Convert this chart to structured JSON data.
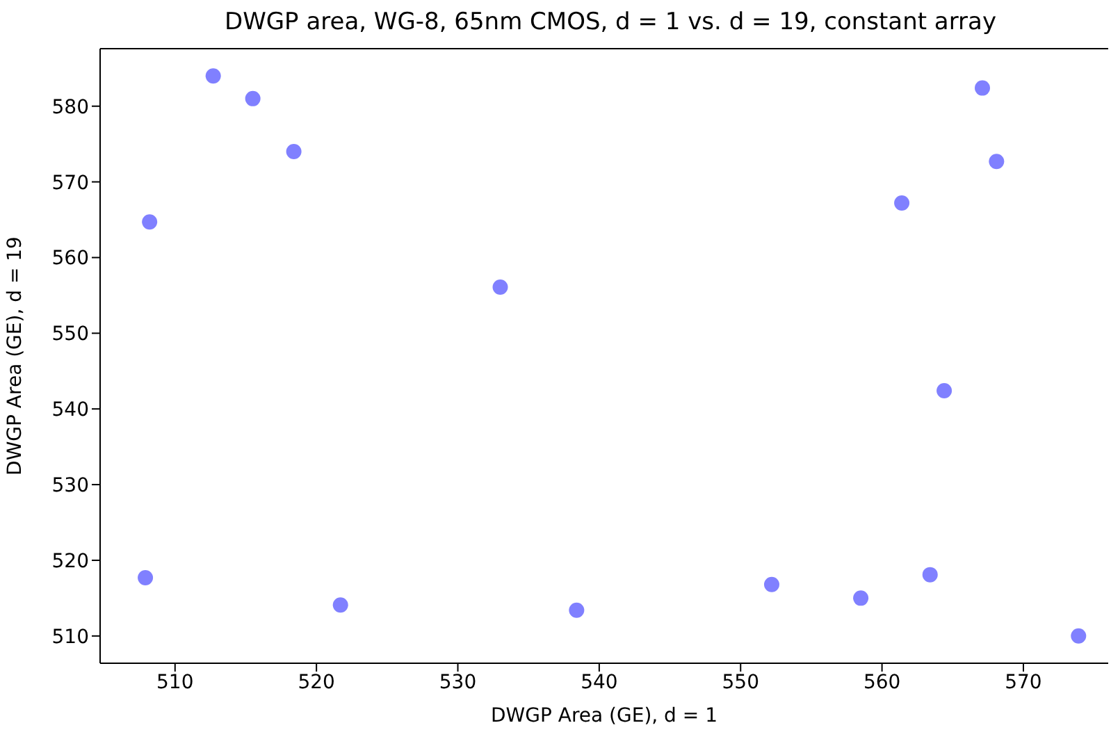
{
  "chart_data": {
    "type": "scatter",
    "title": "DWGP area, WG-8, 65nm CMOS, d = 1 vs. d = 19, constant array",
    "xlabel": "DWGP Area (GE), d = 1",
    "ylabel": "DWGP Area (GE), d = 19",
    "x": [
      512.7,
      515.5,
      518.4,
      508.2,
      533.0,
      567.1,
      568.1,
      561.4,
      564.4,
      507.9,
      521.7,
      538.4,
      552.2,
      558.5,
      563.4,
      573.9
    ],
    "values": [
      584.0,
      581.0,
      574.0,
      564.7,
      556.1,
      582.4,
      572.7,
      567.2,
      542.4,
      517.7,
      514.1,
      513.4,
      516.8,
      515.0,
      518.1,
      510.0
    ],
    "color": "#8080ff",
    "marker": "circle",
    "grid": false,
    "legend": false,
    "xlim": [
      504.7,
      576
    ],
    "xticks": [
      510,
      520,
      530,
      540,
      550,
      560,
      570
    ],
    "ylim": [
      506.4,
      587.6
    ],
    "yticks": [
      510,
      520,
      530,
      540,
      550,
      560,
      570,
      580
    ]
  }
}
